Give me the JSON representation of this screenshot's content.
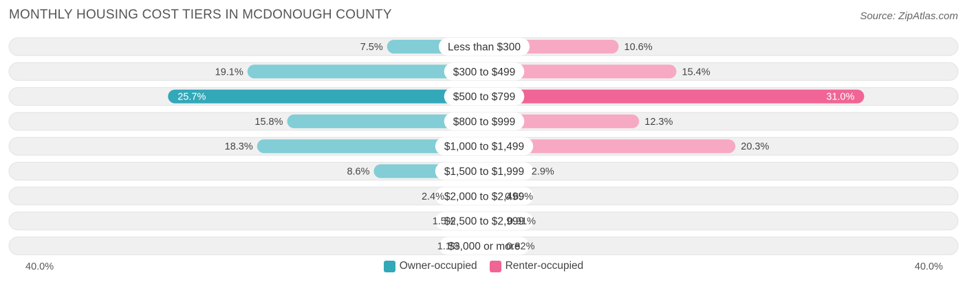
{
  "header": {
    "title": "MONTHLY HOUSING COST TIERS IN MCDONOUGH COUNTY",
    "source": "Source: ZipAtlas.com"
  },
  "colors": {
    "owner": "#33a8b8",
    "owner_light": "#82cdd6",
    "renter": "#f06595",
    "renter_light": "#f7a9c4",
    "track": "#f0f0f0",
    "track_border": "#e2e2e2"
  },
  "chart_data": {
    "type": "bar",
    "orientation": "horizontal-diverging",
    "title": "MONTHLY HOUSING COST TIERS IN MCDONOUGH COUNTY",
    "categories": [
      "Less than $300",
      "$300 to $499",
      "$500 to $799",
      "$800 to $999",
      "$1,000 to $1,499",
      "$1,500 to $1,999",
      "$2,000 to $2,499",
      "$2,500 to $2,999",
      "$3,000 or more"
    ],
    "series": [
      {
        "name": "Owner-occupied",
        "values": [
          7.5,
          19.1,
          25.7,
          15.8,
          18.3,
          8.6,
          2.4,
          1.5,
          1.1
        ],
        "labels": [
          "7.5%",
          "19.1%",
          "25.7%",
          "15.8%",
          "18.3%",
          "8.6%",
          "2.4%",
          "1.5%",
          "1.1%"
        ]
      },
      {
        "name": "Renter-occupied",
        "values": [
          10.6,
          15.4,
          31.0,
          12.3,
          20.3,
          2.9,
          0.69,
          0.91,
          0.82
        ],
        "labels": [
          "10.6%",
          "15.4%",
          "31.0%",
          "12.3%",
          "20.3%",
          "2.9%",
          "0.69%",
          "0.91%",
          "0.82%"
        ]
      }
    ],
    "xlim": [
      -40,
      40
    ],
    "axis_left_label": "40.0%",
    "axis_right_label": "40.0%",
    "legend_position": "bottom-center"
  }
}
